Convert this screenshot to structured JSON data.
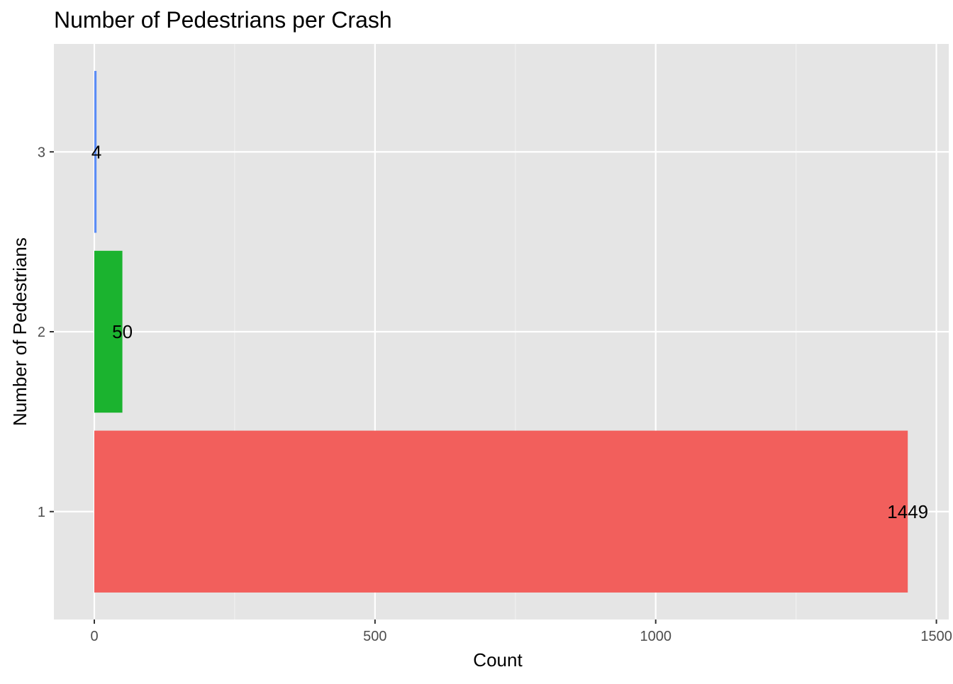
{
  "chart_data": {
    "type": "bar",
    "orientation": "horizontal",
    "title": "Number of Pedestrians per Crash",
    "xlabel": "Count",
    "ylabel": "Number of Pedestrians",
    "categories": [
      "1",
      "2",
      "3"
    ],
    "values": [
      1449,
      50,
      4
    ],
    "data_labels": [
      "1449",
      "50",
      "4"
    ],
    "colors": [
      "#F25F5C",
      "#1BB32F",
      "#5B8CF5"
    ],
    "xlim": [
      -72,
      1522
    ],
    "x_ticks": [
      0,
      500,
      1000,
      1500
    ],
    "x_tick_labels": [
      "0",
      "500",
      "1000",
      "1500"
    ],
    "x_minor_ticks": [
      250,
      750,
      1250
    ],
    "grid": true,
    "legend": "none",
    "panel_background": "#E5E5E5",
    "grid_color": "#FFFFFF"
  }
}
